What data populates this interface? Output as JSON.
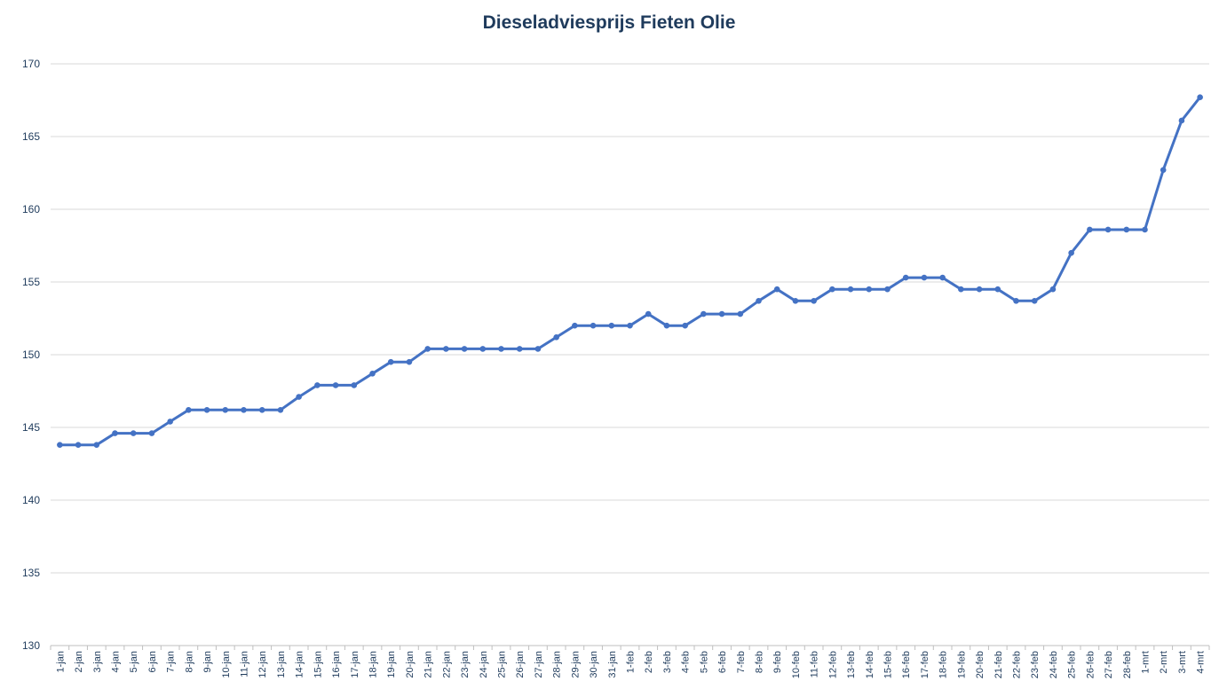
{
  "chart_data": {
    "type": "line",
    "title": "Dieseladviesprijs Fieten Olie",
    "xlabel": "",
    "ylabel": "",
    "ylim": [
      130,
      170
    ],
    "yticks": [
      130,
      135,
      140,
      145,
      150,
      155,
      160,
      165,
      170
    ],
    "grid": true,
    "legend": "none",
    "line_color": "#4472c4",
    "grid_color": "#d9d9d9",
    "categories": [
      "1-jan",
      "2-jan",
      "3-jan",
      "4-jan",
      "5-jan",
      "6-jan",
      "7-jan",
      "8-jan",
      "9-jan",
      "10-jan",
      "11-jan",
      "12-jan",
      "13-jan",
      "14-jan",
      "15-jan",
      "16-jan",
      "17-jan",
      "18-jan",
      "19-jan",
      "20-jan",
      "21-jan",
      "22-jan",
      "23-jan",
      "24-jan",
      "25-jan",
      "26-jan",
      "27-jan",
      "28-jan",
      "29-jan",
      "30-jan",
      "31-jan",
      "1-feb",
      "2-feb",
      "3-feb",
      "4-feb",
      "5-feb",
      "6-feb",
      "7-feb",
      "8-feb",
      "9-feb",
      "10-feb",
      "11-feb",
      "12-feb",
      "13-feb",
      "14-feb",
      "15-feb",
      "16-feb",
      "17-feb",
      "18-feb",
      "19-feb",
      "20-feb",
      "21-feb",
      "22-feb",
      "23-feb",
      "24-feb",
      "25-feb",
      "26-feb",
      "27-feb",
      "28-feb",
      "1-mrt",
      "2-mrt",
      "3-mrt",
      "4-mrt"
    ],
    "series": [
      {
        "values": [
          143.8,
          143.8,
          143.8,
          144.6,
          144.6,
          144.6,
          145.4,
          146.2,
          146.2,
          146.2,
          146.2,
          146.2,
          146.2,
          147.1,
          147.9,
          147.9,
          147.9,
          148.7,
          149.5,
          149.5,
          150.4,
          150.4,
          150.4,
          150.4,
          150.4,
          150.4,
          150.4,
          151.2,
          152.0,
          152.0,
          152.0,
          152.0,
          152.8,
          152.0,
          152.0,
          152.8,
          152.8,
          152.8,
          153.7,
          154.5,
          153.7,
          153.7,
          154.5,
          154.5,
          154.5,
          154.5,
          155.3,
          155.3,
          155.3,
          154.5,
          154.5,
          154.5,
          153.7,
          153.7,
          154.5,
          157.0,
          158.6,
          158.6,
          158.6,
          158.6,
          162.7,
          166.1,
          167.7
        ]
      }
    ]
  }
}
